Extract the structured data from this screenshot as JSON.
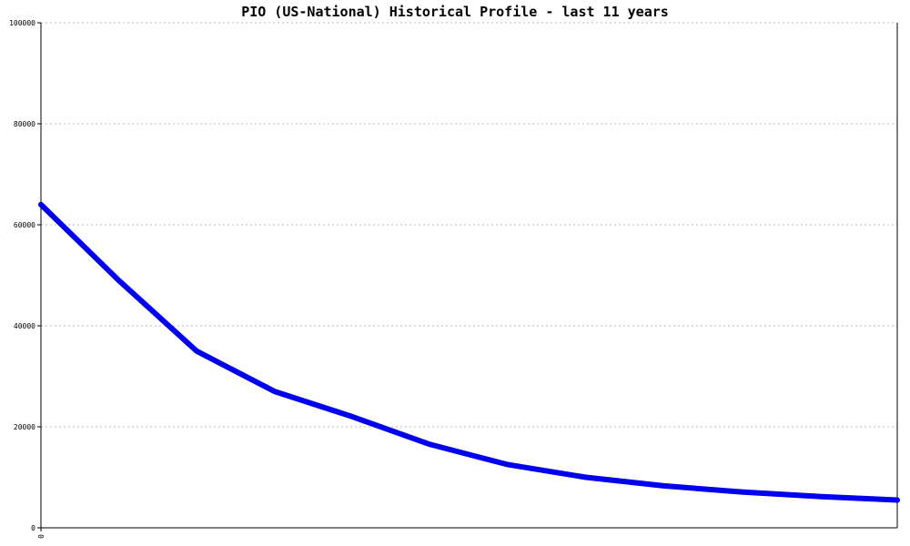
{
  "chart_data": {
    "type": "line",
    "title": "PIO (US-National) Historical Profile - last 11 years",
    "xlabel": "",
    "ylabel": "",
    "ylim": [
      0,
      100000
    ],
    "yticks": [
      0,
      20000,
      40000,
      60000,
      80000,
      100000
    ],
    "ytick_labels": [
      "0",
      "20000",
      "40000",
      "60000",
      "80000",
      "100000"
    ],
    "xticks": [
      0
    ],
    "xtick_labels": [
      "0"
    ],
    "xlim": [
      0,
      11
    ],
    "grid": true,
    "series": [
      {
        "color": "#0000ee",
        "x": [
          0,
          1,
          2,
          3,
          4,
          5,
          6,
          7,
          8,
          9,
          10,
          11
        ],
        "y": [
          64000,
          49000,
          35000,
          27000,
          22000,
          16500,
          12500,
          10000,
          8300,
          7100,
          6200,
          5500
        ]
      }
    ]
  }
}
